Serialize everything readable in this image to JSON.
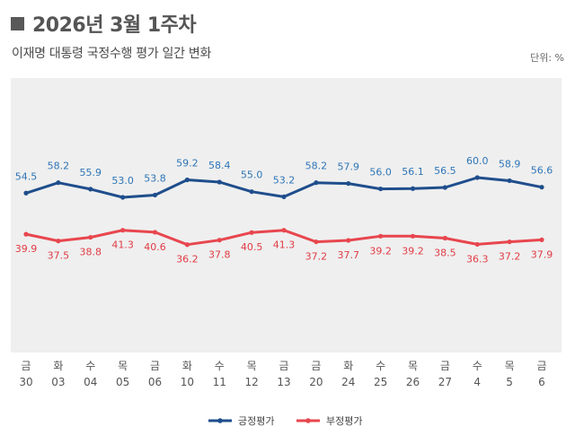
{
  "header": {
    "title": "2026년 3월 1주차",
    "subtitle": "이재명 대통령 국정수행 평가 일간 변화",
    "unit": "단위: %"
  },
  "chart_data": {
    "type": "line",
    "day_labels": [
      "금",
      "화",
      "수",
      "목",
      "금",
      "화",
      "수",
      "목",
      "금",
      "금",
      "화",
      "수",
      "목",
      "금",
      "수",
      "목",
      "금"
    ],
    "date_labels": [
      "30",
      "03",
      "04",
      "05",
      "06",
      "10",
      "11",
      "12",
      "13",
      "20",
      "24",
      "25",
      "26",
      "27",
      "4",
      "5",
      "6"
    ],
    "ylim": [
      0,
      100
    ],
    "grid": false,
    "legend_position": "bottom-center",
    "series": [
      {
        "name": "긍정평가",
        "color": "#1f4e8c",
        "label_color": "#2e75b6",
        "values": [
          54.5,
          58.2,
          55.9,
          53.0,
          53.8,
          59.2,
          58.4,
          55.0,
          53.2,
          58.2,
          57.9,
          56.0,
          56.1,
          56.5,
          60.0,
          58.9,
          56.6
        ],
        "labels": [
          "54.5",
          "58.2",
          "55.9",
          "53.0",
          "53.8",
          "59.2",
          "58.4",
          "55.0",
          "53.2",
          "58.2",
          "57.9",
          "56.0",
          "56.1",
          "56.5",
          "60.0",
          "58.9",
          "56.6"
        ]
      },
      {
        "name": "부정평가",
        "color": "#e8464e",
        "label_color": "#e03c44",
        "values": [
          39.9,
          37.5,
          38.8,
          41.3,
          40.6,
          36.2,
          37.8,
          40.5,
          41.3,
          37.2,
          37.7,
          39.2,
          39.2,
          38.5,
          36.3,
          37.2,
          37.9
        ],
        "labels": [
          "39.9",
          "37.5",
          "38.8",
          "41.3",
          "40.6",
          "36.2",
          "37.8",
          "40.5",
          "41.3",
          "37.2",
          "37.7",
          "39.2",
          "39.2",
          "38.5",
          "36.3",
          "37.2",
          "37.9"
        ]
      }
    ]
  }
}
